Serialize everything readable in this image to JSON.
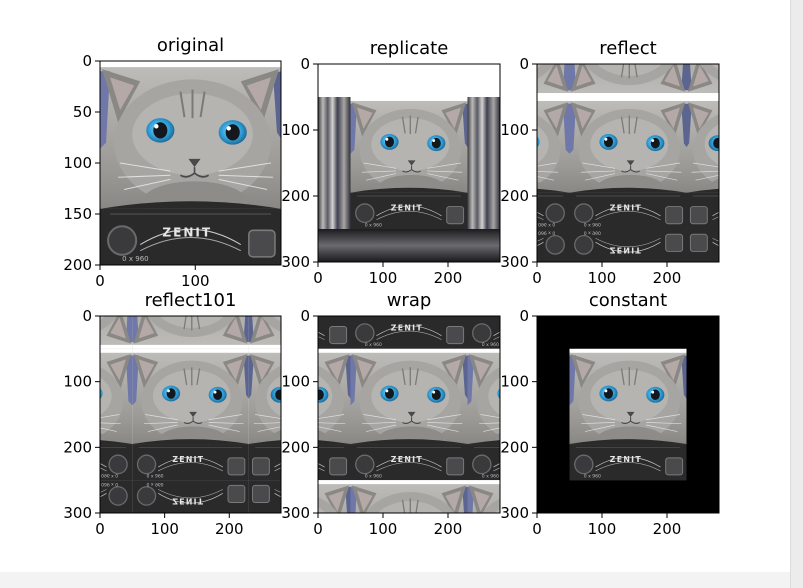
{
  "figure": {
    "layout": "2x3 grid of image subplots",
    "panel_titles": [
      "original",
      "replicate",
      "reflect",
      "reflect101",
      "wrap",
      "constant"
    ]
  },
  "chart_data": [
    {
      "type": "image",
      "title": "original",
      "xlim": [
        0,
        190
      ],
      "ylim": [
        200,
        0
      ],
      "xticks": [
        0,
        100
      ],
      "yticks": [
        0,
        50,
        100,
        150,
        200
      ],
      "image_extent": [
        0,
        190,
        0,
        200
      ],
      "mode": "none",
      "text_on_image": [
        "ZENIT",
        "0 x 960"
      ]
    },
    {
      "type": "image",
      "title": "replicate",
      "xlim": [
        0,
        280
      ],
      "ylim": [
        300,
        0
      ],
      "xticks": [
        0,
        100,
        200
      ],
      "yticks": [
        0,
        100,
        200,
        300
      ],
      "image_extent": [
        50,
        230,
        50,
        250
      ],
      "mode": "replicate",
      "text_on_image": [
        "ZENIT"
      ]
    },
    {
      "type": "image",
      "title": "reflect",
      "xlim": [
        0,
        280
      ],
      "ylim": [
        300,
        0
      ],
      "xticks": [
        0,
        100,
        200
      ],
      "yticks": [
        0,
        100,
        200,
        300
      ],
      "image_extent": [
        50,
        230,
        50,
        250
      ],
      "mode": "reflect",
      "text_on_image": [
        "ZENIT",
        "ZENIT"
      ]
    },
    {
      "type": "image",
      "title": "reflect101",
      "xlim": [
        0,
        280
      ],
      "ylim": [
        300,
        0
      ],
      "xticks": [
        0,
        100,
        200
      ],
      "yticks": [
        0,
        100,
        200,
        300
      ],
      "image_extent": [
        50,
        230,
        50,
        250
      ],
      "mode": "reflect101",
      "text_on_image": [
        "ZENIT",
        "ZENIT"
      ]
    },
    {
      "type": "image",
      "title": "wrap",
      "xlim": [
        0,
        280
      ],
      "ylim": [
        300,
        0
      ],
      "xticks": [
        0,
        100,
        200
      ],
      "yticks": [
        0,
        100,
        200,
        300
      ],
      "image_extent": [
        50,
        230,
        50,
        250
      ],
      "mode": "wrap",
      "text_on_image": [
        "ZENIT",
        "ZENIT"
      ]
    },
    {
      "type": "image",
      "title": "constant",
      "xlim": [
        0,
        280
      ],
      "ylim": [
        300,
        0
      ],
      "xticks": [
        0,
        100,
        200
      ],
      "yticks": [
        0,
        100,
        200,
        300
      ],
      "image_extent": [
        50,
        230,
        50,
        250
      ],
      "mode": "constant",
      "border_color": "#000000",
      "text_on_image": [
        "ZENIT",
        "0 x 960"
      ]
    }
  ],
  "colors": {
    "fur_light": "#b3b1ae",
    "fur_mid": "#8f8d8a",
    "fur_dark": "#5f5d5a",
    "eye": "#2f9fd8",
    "pupil": "#14181c",
    "camera": "#2a2a2b",
    "blue_accent": "#7b86b8",
    "background_white": "#ffffff"
  }
}
